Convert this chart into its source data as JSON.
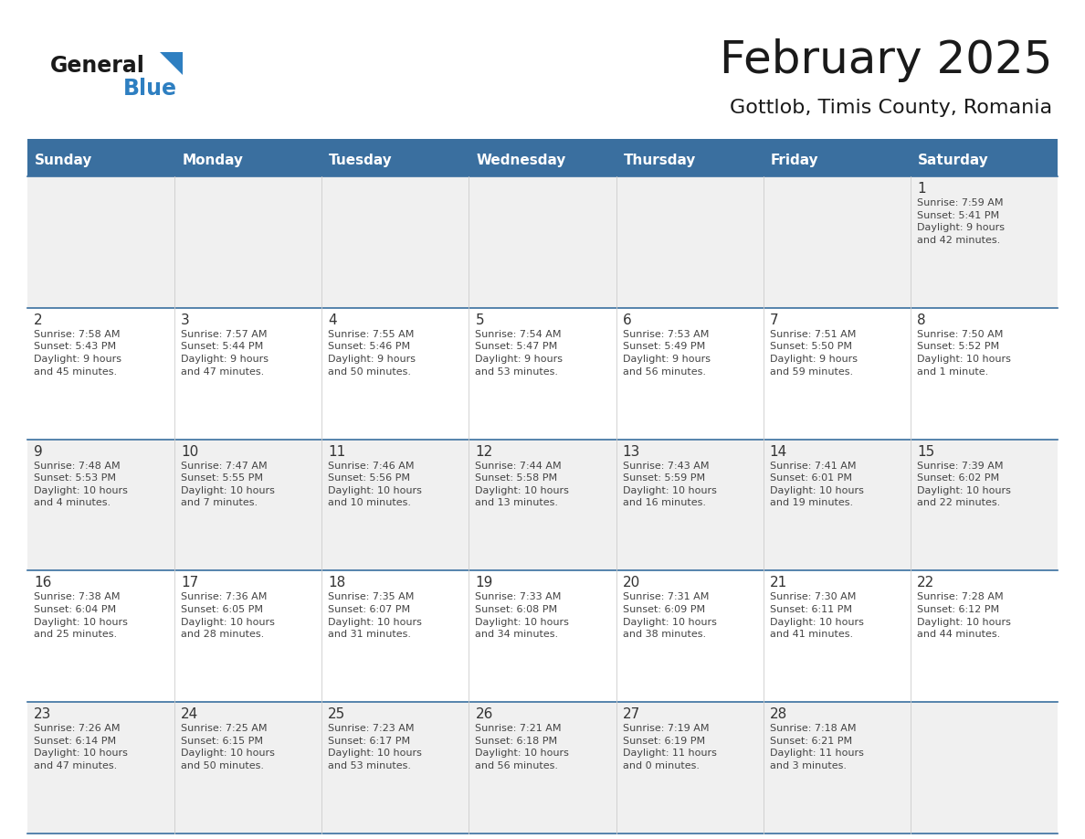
{
  "title": "February 2025",
  "subtitle": "Gottlob, Timis County, Romania",
  "header_bg_color": "#3a6f9f",
  "header_text_color": "#ffffff",
  "day_names": [
    "Sunday",
    "Monday",
    "Tuesday",
    "Wednesday",
    "Thursday",
    "Friday",
    "Saturday"
  ],
  "row_bg_colors": [
    "#f0f0f0",
    "#ffffff",
    "#f0f0f0",
    "#ffffff",
    "#f0f0f0"
  ],
  "grid_line_color": "#3a6f9f",
  "cell_text_color": "#444444",
  "day_num_color": "#333333",
  "logo_general_color": "#1a1a1a",
  "logo_blue_color": "#2e7fc1",
  "days": [
    {
      "day": 1,
      "col": 6,
      "row": 0,
      "sunrise": "7:59 AM",
      "sunset": "5:41 PM",
      "daylight": "9 hours\nand 42 minutes."
    },
    {
      "day": 2,
      "col": 0,
      "row": 1,
      "sunrise": "7:58 AM",
      "sunset": "5:43 PM",
      "daylight": "9 hours\nand 45 minutes."
    },
    {
      "day": 3,
      "col": 1,
      "row": 1,
      "sunrise": "7:57 AM",
      "sunset": "5:44 PM",
      "daylight": "9 hours\nand 47 minutes."
    },
    {
      "day": 4,
      "col": 2,
      "row": 1,
      "sunrise": "7:55 AM",
      "sunset": "5:46 PM",
      "daylight": "9 hours\nand 50 minutes."
    },
    {
      "day": 5,
      "col": 3,
      "row": 1,
      "sunrise": "7:54 AM",
      "sunset": "5:47 PM",
      "daylight": "9 hours\nand 53 minutes."
    },
    {
      "day": 6,
      "col": 4,
      "row": 1,
      "sunrise": "7:53 AM",
      "sunset": "5:49 PM",
      "daylight": "9 hours\nand 56 minutes."
    },
    {
      "day": 7,
      "col": 5,
      "row": 1,
      "sunrise": "7:51 AM",
      "sunset": "5:50 PM",
      "daylight": "9 hours\nand 59 minutes."
    },
    {
      "day": 8,
      "col": 6,
      "row": 1,
      "sunrise": "7:50 AM",
      "sunset": "5:52 PM",
      "daylight": "10 hours\nand 1 minute."
    },
    {
      "day": 9,
      "col": 0,
      "row": 2,
      "sunrise": "7:48 AM",
      "sunset": "5:53 PM",
      "daylight": "10 hours\nand 4 minutes."
    },
    {
      "day": 10,
      "col": 1,
      "row": 2,
      "sunrise": "7:47 AM",
      "sunset": "5:55 PM",
      "daylight": "10 hours\nand 7 minutes."
    },
    {
      "day": 11,
      "col": 2,
      "row": 2,
      "sunrise": "7:46 AM",
      "sunset": "5:56 PM",
      "daylight": "10 hours\nand 10 minutes."
    },
    {
      "day": 12,
      "col": 3,
      "row": 2,
      "sunrise": "7:44 AM",
      "sunset": "5:58 PM",
      "daylight": "10 hours\nand 13 minutes."
    },
    {
      "day": 13,
      "col": 4,
      "row": 2,
      "sunrise": "7:43 AM",
      "sunset": "5:59 PM",
      "daylight": "10 hours\nand 16 minutes."
    },
    {
      "day": 14,
      "col": 5,
      "row": 2,
      "sunrise": "7:41 AM",
      "sunset": "6:01 PM",
      "daylight": "10 hours\nand 19 minutes."
    },
    {
      "day": 15,
      "col": 6,
      "row": 2,
      "sunrise": "7:39 AM",
      "sunset": "6:02 PM",
      "daylight": "10 hours\nand 22 minutes."
    },
    {
      "day": 16,
      "col": 0,
      "row": 3,
      "sunrise": "7:38 AM",
      "sunset": "6:04 PM",
      "daylight": "10 hours\nand 25 minutes."
    },
    {
      "day": 17,
      "col": 1,
      "row": 3,
      "sunrise": "7:36 AM",
      "sunset": "6:05 PM",
      "daylight": "10 hours\nand 28 minutes."
    },
    {
      "day": 18,
      "col": 2,
      "row": 3,
      "sunrise": "7:35 AM",
      "sunset": "6:07 PM",
      "daylight": "10 hours\nand 31 minutes."
    },
    {
      "day": 19,
      "col": 3,
      "row": 3,
      "sunrise": "7:33 AM",
      "sunset": "6:08 PM",
      "daylight": "10 hours\nand 34 minutes."
    },
    {
      "day": 20,
      "col": 4,
      "row": 3,
      "sunrise": "7:31 AM",
      "sunset": "6:09 PM",
      "daylight": "10 hours\nand 38 minutes."
    },
    {
      "day": 21,
      "col": 5,
      "row": 3,
      "sunrise": "7:30 AM",
      "sunset": "6:11 PM",
      "daylight": "10 hours\nand 41 minutes."
    },
    {
      "day": 22,
      "col": 6,
      "row": 3,
      "sunrise": "7:28 AM",
      "sunset": "6:12 PM",
      "daylight": "10 hours\nand 44 minutes."
    },
    {
      "day": 23,
      "col": 0,
      "row": 4,
      "sunrise": "7:26 AM",
      "sunset": "6:14 PM",
      "daylight": "10 hours\nand 47 minutes."
    },
    {
      "day": 24,
      "col": 1,
      "row": 4,
      "sunrise": "7:25 AM",
      "sunset": "6:15 PM",
      "daylight": "10 hours\nand 50 minutes."
    },
    {
      "day": 25,
      "col": 2,
      "row": 4,
      "sunrise": "7:23 AM",
      "sunset": "6:17 PM",
      "daylight": "10 hours\nand 53 minutes."
    },
    {
      "day": 26,
      "col": 3,
      "row": 4,
      "sunrise": "7:21 AM",
      "sunset": "6:18 PM",
      "daylight": "10 hours\nand 56 minutes."
    },
    {
      "day": 27,
      "col": 4,
      "row": 4,
      "sunrise": "7:19 AM",
      "sunset": "6:19 PM",
      "daylight": "11 hours\nand 0 minutes."
    },
    {
      "day": 28,
      "col": 5,
      "row": 4,
      "sunrise": "7:18 AM",
      "sunset": "6:21 PM",
      "daylight": "11 hours\nand 3 minutes."
    }
  ]
}
